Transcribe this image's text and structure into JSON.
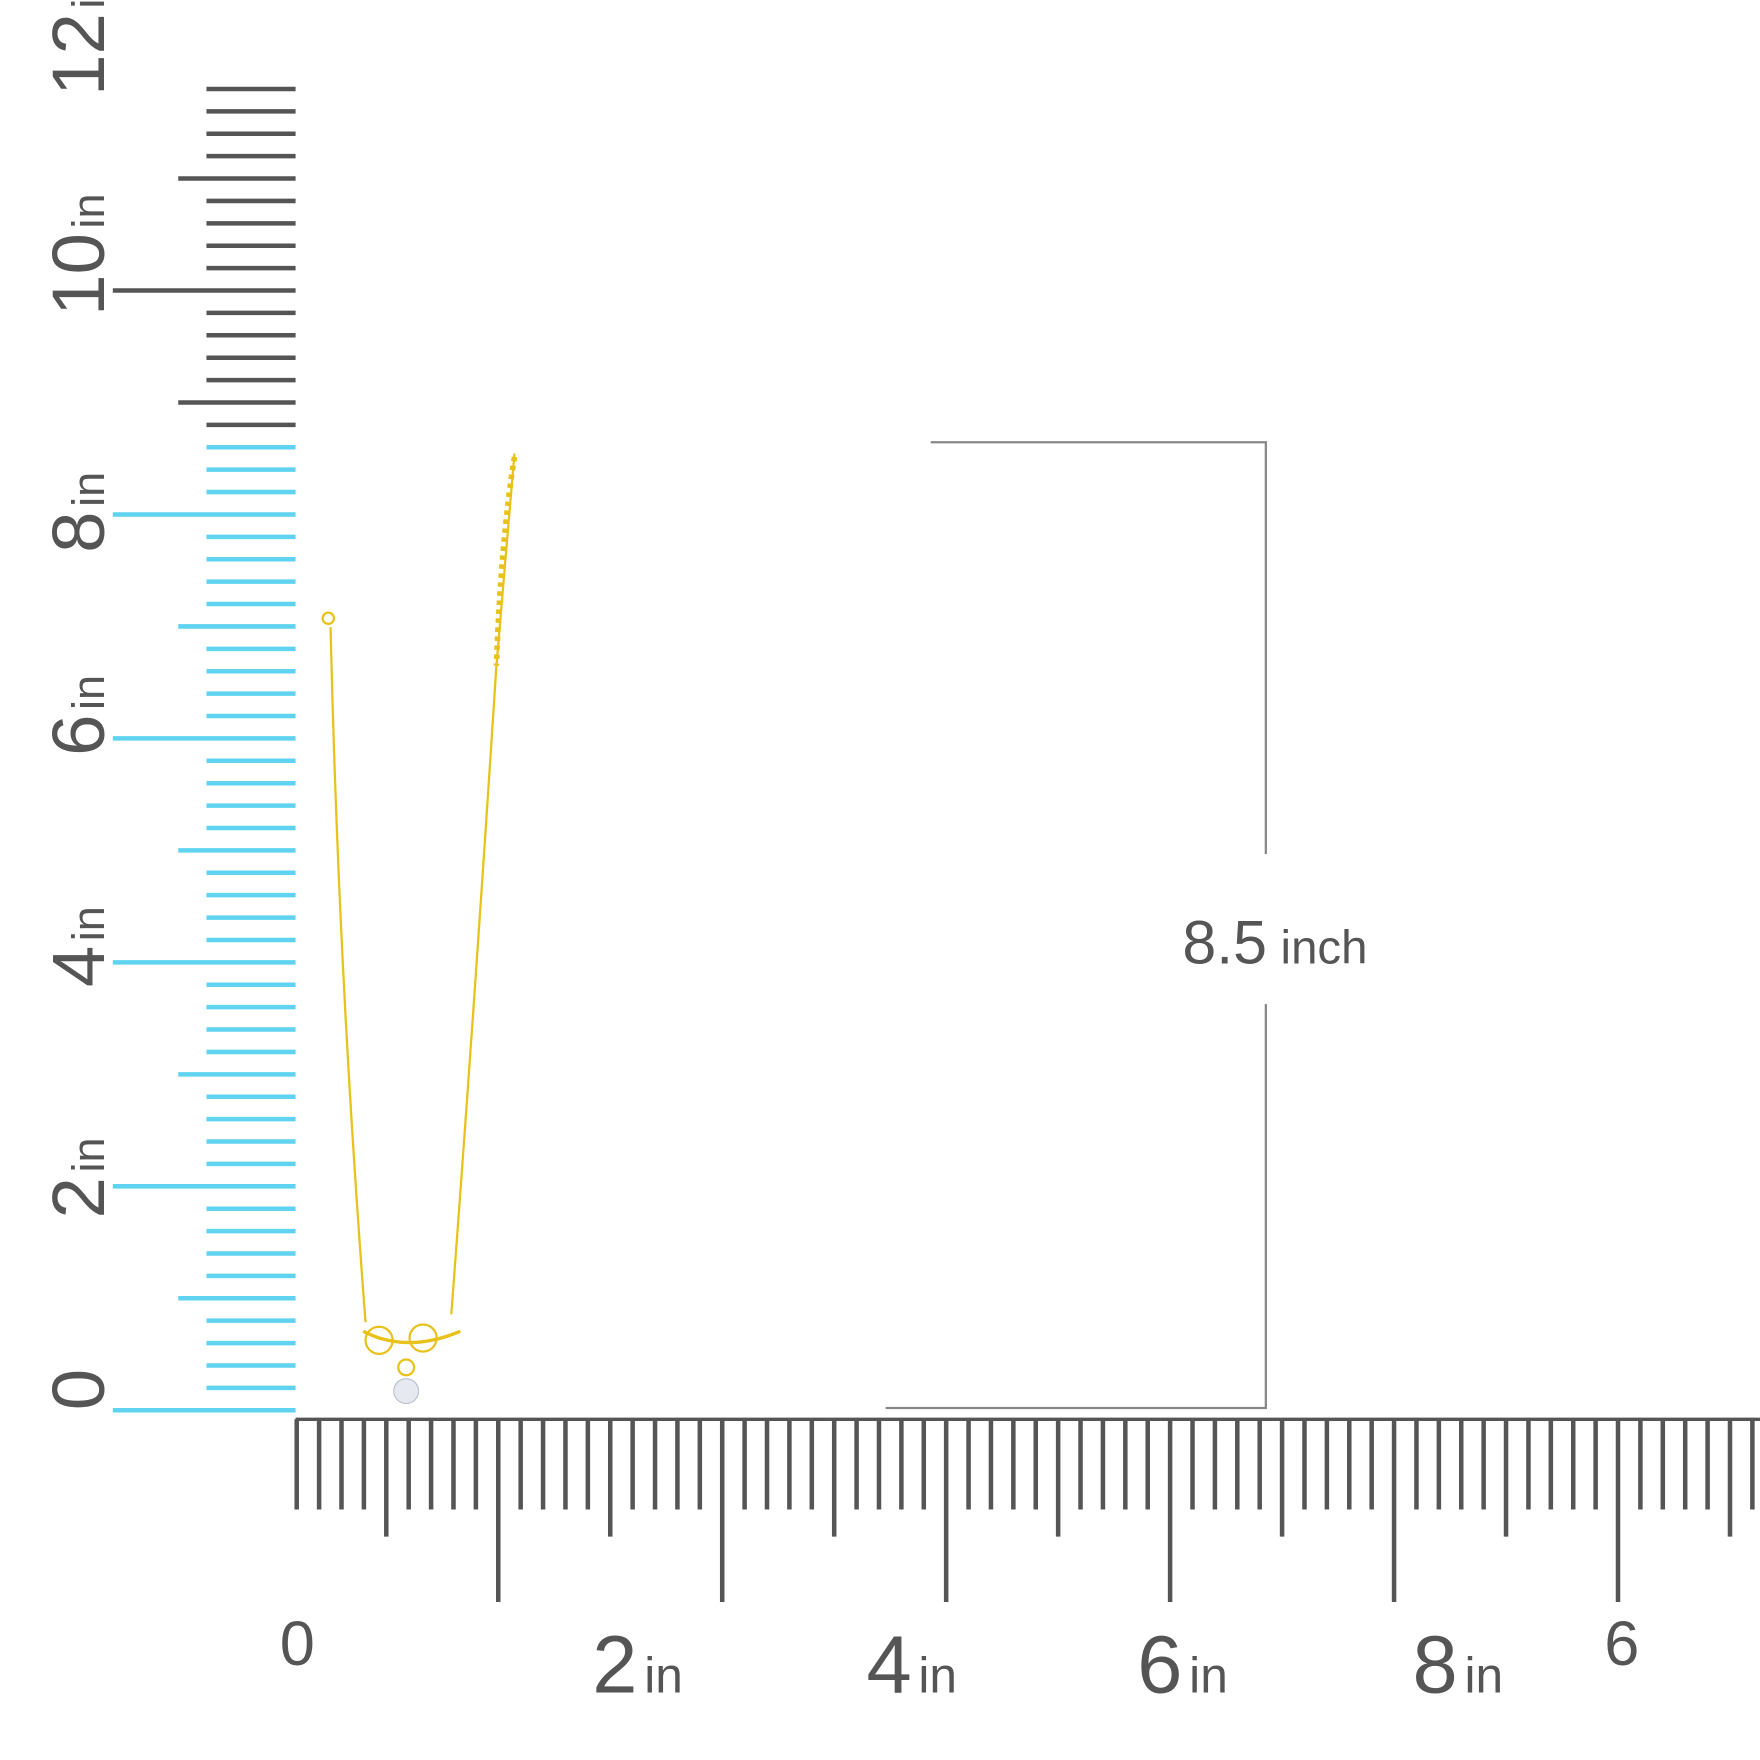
{
  "vertical_ruler": {
    "labels": [
      {
        "number": "0"
      },
      {
        "number": "2",
        "unit": "in"
      },
      {
        "number": "4",
        "unit": "in"
      },
      {
        "number": "6",
        "unit": "in"
      },
      {
        "number": "8",
        "unit": "in"
      },
      {
        "number": "10",
        "unit": "in"
      },
      {
        "number": "12",
        "unit": "in"
      }
    ]
  },
  "horizontal_ruler": {
    "labels": [
      {
        "number": "0"
      },
      {
        "number": "2",
        "unit": "in"
      },
      {
        "number": "4",
        "unit": "in"
      },
      {
        "number": "6",
        "unit": "in"
      },
      {
        "number": "8",
        "unit": "in"
      },
      {
        "number": "6"
      }
    ]
  },
  "measurement": {
    "value": "8.5",
    "unit": "inch"
  }
}
